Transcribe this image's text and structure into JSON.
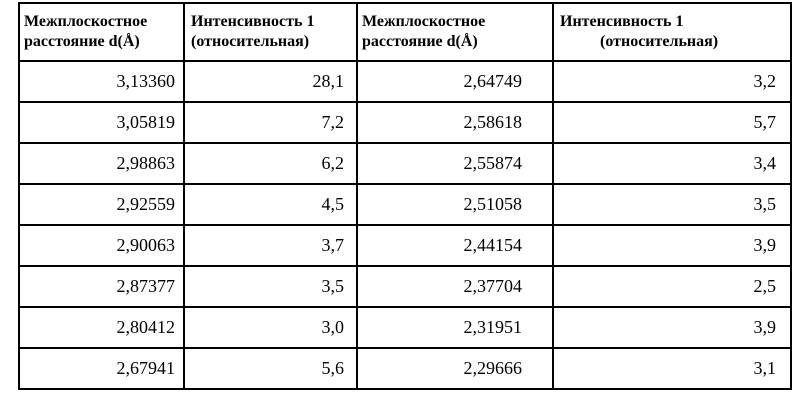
{
  "table": {
    "headers": [
      {
        "line1": "Межплоскостное",
        "line2": "расстояние d(Å)"
      },
      {
        "line1": "Интенсивность 1",
        "line2": "(относительная)"
      },
      {
        "line1": "Межплоскостное",
        "line2": "расстояние d(Å)"
      },
      {
        "line1": "Интенсивность 1",
        "line2": "(относительная)"
      }
    ],
    "rows": [
      [
        "3,13360",
        "28,1",
        "2,64749",
        "3,2"
      ],
      [
        "3,05819",
        "7,2",
        "2,58618",
        "5,7"
      ],
      [
        "2,98863",
        "6,2",
        "2,55874",
        "3,4"
      ],
      [
        "2,92559",
        "4,5",
        "2,51058",
        "3,5"
      ],
      [
        "2,90063",
        "3,7",
        "2,44154",
        "3,9"
      ],
      [
        "2,87377",
        "3,5",
        "2,37704",
        "2,5"
      ],
      [
        "2,80412",
        "3,0",
        "2,31951",
        "3,9"
      ],
      [
        "2,67941",
        "5,6",
        "2,29666",
        "3,1"
      ]
    ]
  }
}
